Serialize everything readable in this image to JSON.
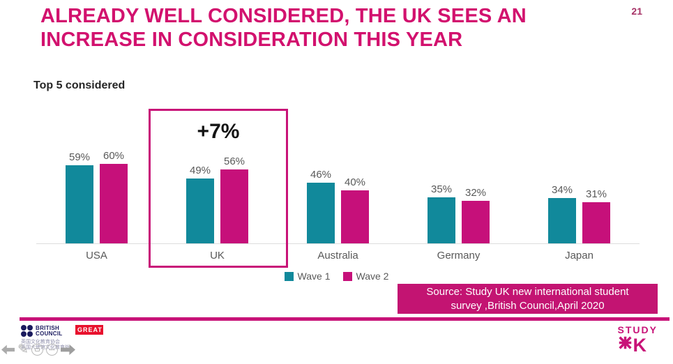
{
  "slide": {
    "page_number": "21",
    "title_line1": "ALREADY WELL CONSIDERED, THE UK SEES AN",
    "title_line2": "INCREASE IN CONSIDERATION THIS YEAR",
    "subtitle": "Top 5 considered"
  },
  "chart_data": {
    "type": "bar",
    "title": "Top 5 considered",
    "categories": [
      "USA",
      "UK",
      "Australia",
      "Germany",
      "Japan"
    ],
    "series": [
      {
        "name": "Wave 1",
        "color": "#11899B",
        "values": [
          59,
          49,
          46,
          35,
          34
        ]
      },
      {
        "name": "Wave 2",
        "color": "#C6107A",
        "values": [
          60,
          56,
          40,
          32,
          31
        ]
      }
    ],
    "value_suffix": "%",
    "annotation": {
      "category": "UK",
      "label": "+7%"
    },
    "xlabel": "",
    "ylabel": "",
    "ylim": [
      0,
      105
    ],
    "gridlines": false,
    "legend_position": "bottom"
  },
  "source_box": {
    "line1": "Source: Study UK new international student",
    "line2": "survey ,British Council,April 2020",
    "background": "#C31472"
  },
  "footer": {
    "british_council_line1": "BRITISH",
    "british_council_line2": "COUNCIL",
    "great_label": "GREAT",
    "chinese_line1": "英国文化教育协会",
    "chinese_line2": "英国大使馆文化教育处",
    "study_uk_word": "STUDY",
    "study_uk_k": "K"
  },
  "nav_icons": [
    "previous-slide-arrow",
    "pen-tool",
    "comment-tool",
    "more-options",
    "next-slide-arrow"
  ],
  "colors": {
    "title_magenta": "#D2116E",
    "brand_magenta": "#C81378",
    "teal": "#11899B",
    "label_gray": "#595959",
    "great_red": "#E8112D",
    "navy": "#1A1A5E"
  }
}
